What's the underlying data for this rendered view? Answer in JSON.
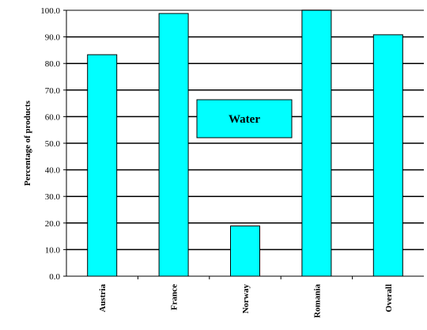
{
  "chart_data": {
    "type": "bar",
    "categories": [
      "Austria",
      "France",
      "Norway",
      "Romania",
      "Overall"
    ],
    "series": [
      {
        "name": "Water",
        "values": [
          83.3,
          98.8,
          18.9,
          100.0,
          90.8
        ],
        "color": "#00ffff"
      }
    ],
    "ylabel": "Percentage of products",
    "xlabel": "",
    "ylim": [
      0,
      100
    ],
    "yticks": [
      "0.0",
      "10.0",
      "20.0",
      "30.0",
      "40.0",
      "50.0",
      "60.0",
      "70.0",
      "80.0",
      "90.0",
      "100.0"
    ],
    "grid": true,
    "legend_placement": "center"
  }
}
